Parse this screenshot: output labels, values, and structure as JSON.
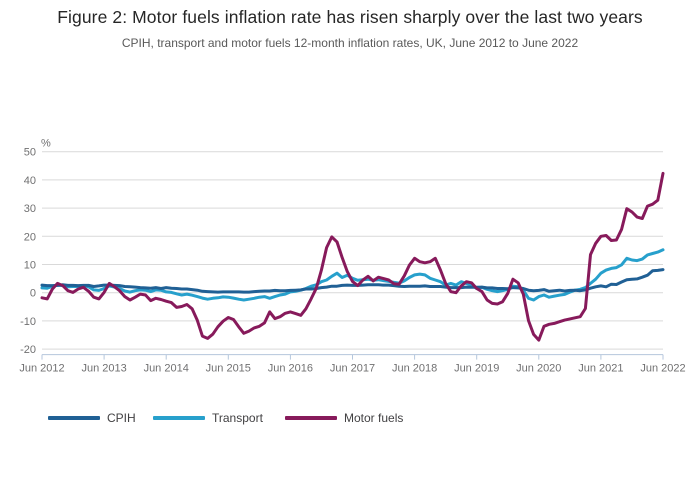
{
  "title": "Figure 2: Motor fuels inflation rate has risen sharply over the last two years",
  "subtitle": "CPIH, transport and motor fuels 12-month inflation rates, UK, June 2012 to June 2022",
  "legend": {
    "items": [
      {
        "label": "CPIH",
        "color": "#206095"
      },
      {
        "label": "Transport",
        "color": "#27A0CC"
      },
      {
        "label": "Motor fuels",
        "color": "#871A5B"
      }
    ]
  },
  "colors": {
    "gridline": "#d9d9d9",
    "axis": "#b4c6dc",
    "tick_text": "#707071"
  },
  "chart_data": {
    "type": "line",
    "title": "Figure 2: Motor fuels inflation rate has risen sharply over the last two years",
    "subtitle": "CPIH, transport and motor fuels 12-month inflation rates, UK, June 2012 to June 2022",
    "unit_label": "%",
    "x_start": "Jun 2012",
    "x_end": "Jun 2022",
    "x_frequency": "monthly",
    "x_tick_labels": [
      "Jun 2012",
      "Jun 2013",
      "Jun 2014",
      "Jun 2015",
      "Jun 2016",
      "Jun 2017",
      "Jun 2018",
      "Jun 2019",
      "Jun 2020",
      "Jun 2021",
      "Jun 2022"
    ],
    "y_ticks": [
      -20,
      -10,
      0,
      10,
      20,
      30,
      40,
      50
    ],
    "ylim": [
      -20,
      50
    ],
    "grid": "horizontal",
    "legend_position": "bottom",
    "series": [
      {
        "name": "CPIH",
        "color": "#206095",
        "values": [
          2.7,
          2.5,
          2.5,
          2.6,
          2.8,
          2.6,
          2.6,
          2.5,
          2.6,
          2.6,
          2.2,
          2.4,
          2.7,
          2.7,
          2.6,
          2.5,
          2.2,
          2.1,
          2.0,
          1.8,
          1.7,
          1.6,
          1.8,
          1.5,
          1.8,
          1.6,
          1.5,
          1.3,
          1.3,
          1.1,
          0.9,
          0.5,
          0.4,
          0.3,
          0.2,
          0.3,
          0.3,
          0.3,
          0.3,
          0.2,
          0.2,
          0.4,
          0.5,
          0.6,
          0.6,
          0.8,
          0.7,
          0.7,
          0.8,
          0.9,
          1.0,
          1.3,
          1.3,
          1.5,
          1.8,
          2.0,
          2.3,
          2.3,
          2.6,
          2.7,
          2.6,
          2.6,
          2.7,
          2.8,
          2.8,
          2.8,
          2.7,
          2.7,
          2.5,
          2.3,
          2.2,
          2.3,
          2.3,
          2.3,
          2.4,
          2.2,
          2.2,
          2.2,
          2.0,
          1.8,
          1.8,
          1.8,
          2.0,
          1.9,
          1.9,
          2.0,
          1.7,
          1.7,
          1.5,
          1.5,
          1.4,
          1.8,
          1.7,
          1.5,
          0.9,
          0.7,
          0.8,
          1.1,
          0.5,
          0.7,
          0.9,
          0.6,
          0.8,
          0.9,
          0.7,
          1.0,
          1.6,
          2.1,
          2.4,
          2.1,
          3.0,
          2.9,
          3.8,
          4.6,
          4.8,
          4.9,
          5.5,
          6.2,
          7.8,
          7.9,
          8.2
        ]
      },
      {
        "name": "Transport",
        "color": "#27A0CC",
        "values": [
          1.7,
          1.6,
          2.3,
          2.7,
          2.5,
          2.1,
          2.2,
          2.2,
          2.5,
          2.1,
          1.0,
          0.8,
          1.5,
          2.4,
          2.0,
          1.5,
          0.6,
          0.2,
          0.7,
          1.0,
          0.9,
          0.4,
          1.0,
          0.9,
          0.3,
          0.1,
          -0.4,
          -0.8,
          -0.5,
          -0.9,
          -1.4,
          -1.9,
          -2.3,
          -2.0,
          -1.8,
          -1.5,
          -1.6,
          -1.9,
          -2.3,
          -2.6,
          -2.3,
          -2.0,
          -1.6,
          -1.4,
          -2.0,
          -1.4,
          -0.8,
          -0.5,
          0.3,
          0.5,
          0.9,
          1.5,
          2.3,
          2.8,
          3.9,
          4.5,
          5.8,
          6.9,
          5.4,
          6.2,
          5.1,
          4.4,
          4.6,
          4.8,
          4.4,
          4.6,
          4.3,
          4.0,
          3.7,
          3.4,
          4.2,
          5.4,
          6.3,
          6.6,
          6.3,
          5.1,
          4.5,
          3.9,
          2.7,
          3.3,
          2.7,
          3.9,
          3.3,
          2.7,
          1.5,
          1.9,
          1.2,
          0.7,
          0.4,
          0.7,
          1.2,
          2.3,
          2.1,
          0.9,
          -2.0,
          -2.6,
          -1.4,
          -0.8,
          -1.6,
          -1.2,
          -0.9,
          -0.6,
          0.2,
          0.9,
          1.2,
          1.8,
          3.3,
          4.8,
          6.9,
          8.0,
          8.6,
          8.9,
          9.9,
          12.2,
          11.6,
          11.4,
          11.9,
          13.4,
          13.9,
          14.4,
          15.2
        ]
      },
      {
        "name": "Motor fuels",
        "color": "#871A5B",
        "values": [
          -1.8,
          -2.2,
          1.3,
          3.3,
          2.5,
          0.7,
          0.1,
          1.3,
          1.9,
          0.5,
          -1.6,
          -2.2,
          0.1,
          3.3,
          2.1,
          0.7,
          -1.4,
          -2.6,
          -1.6,
          -0.5,
          -0.8,
          -2.8,
          -2.0,
          -2.4,
          -3.0,
          -3.5,
          -5.2,
          -4.9,
          -4.2,
          -5.7,
          -9.8,
          -15.4,
          -16.2,
          -14.7,
          -12.1,
          -10.1,
          -8.8,
          -9.5,
          -12.1,
          -14.4,
          -13.6,
          -12.5,
          -11.9,
          -10.7,
          -6.8,
          -9.2,
          -8.5,
          -7.3,
          -6.8,
          -7.4,
          -8.0,
          -5.7,
          -2.2,
          1.6,
          8.0,
          16.0,
          19.8,
          18.0,
          12.5,
          7.5,
          4.0,
          2.5,
          4.5,
          5.8,
          4.2,
          5.5,
          5.0,
          4.5,
          3.2,
          3.0,
          6.0,
          9.8,
          12.2,
          11.0,
          10.6,
          11.0,
          12.2,
          8.0,
          3.3,
          0.4,
          0.0,
          2.4,
          3.9,
          3.5,
          1.5,
          0.4,
          -2.6,
          -3.8,
          -4.0,
          -3.2,
          -0.2,
          4.8,
          3.5,
          -0.5,
          -9.9,
          -14.8,
          -16.8,
          -11.9,
          -11.2,
          -10.9,
          -10.3,
          -9.7,
          -9.3,
          -8.9,
          -8.5,
          -5.6,
          13.5,
          17.5,
          20.0,
          20.3,
          18.5,
          18.7,
          22.5,
          29.8,
          28.6,
          26.8,
          26.3,
          30.7,
          31.4,
          32.8,
          42.3
        ]
      }
    ]
  }
}
